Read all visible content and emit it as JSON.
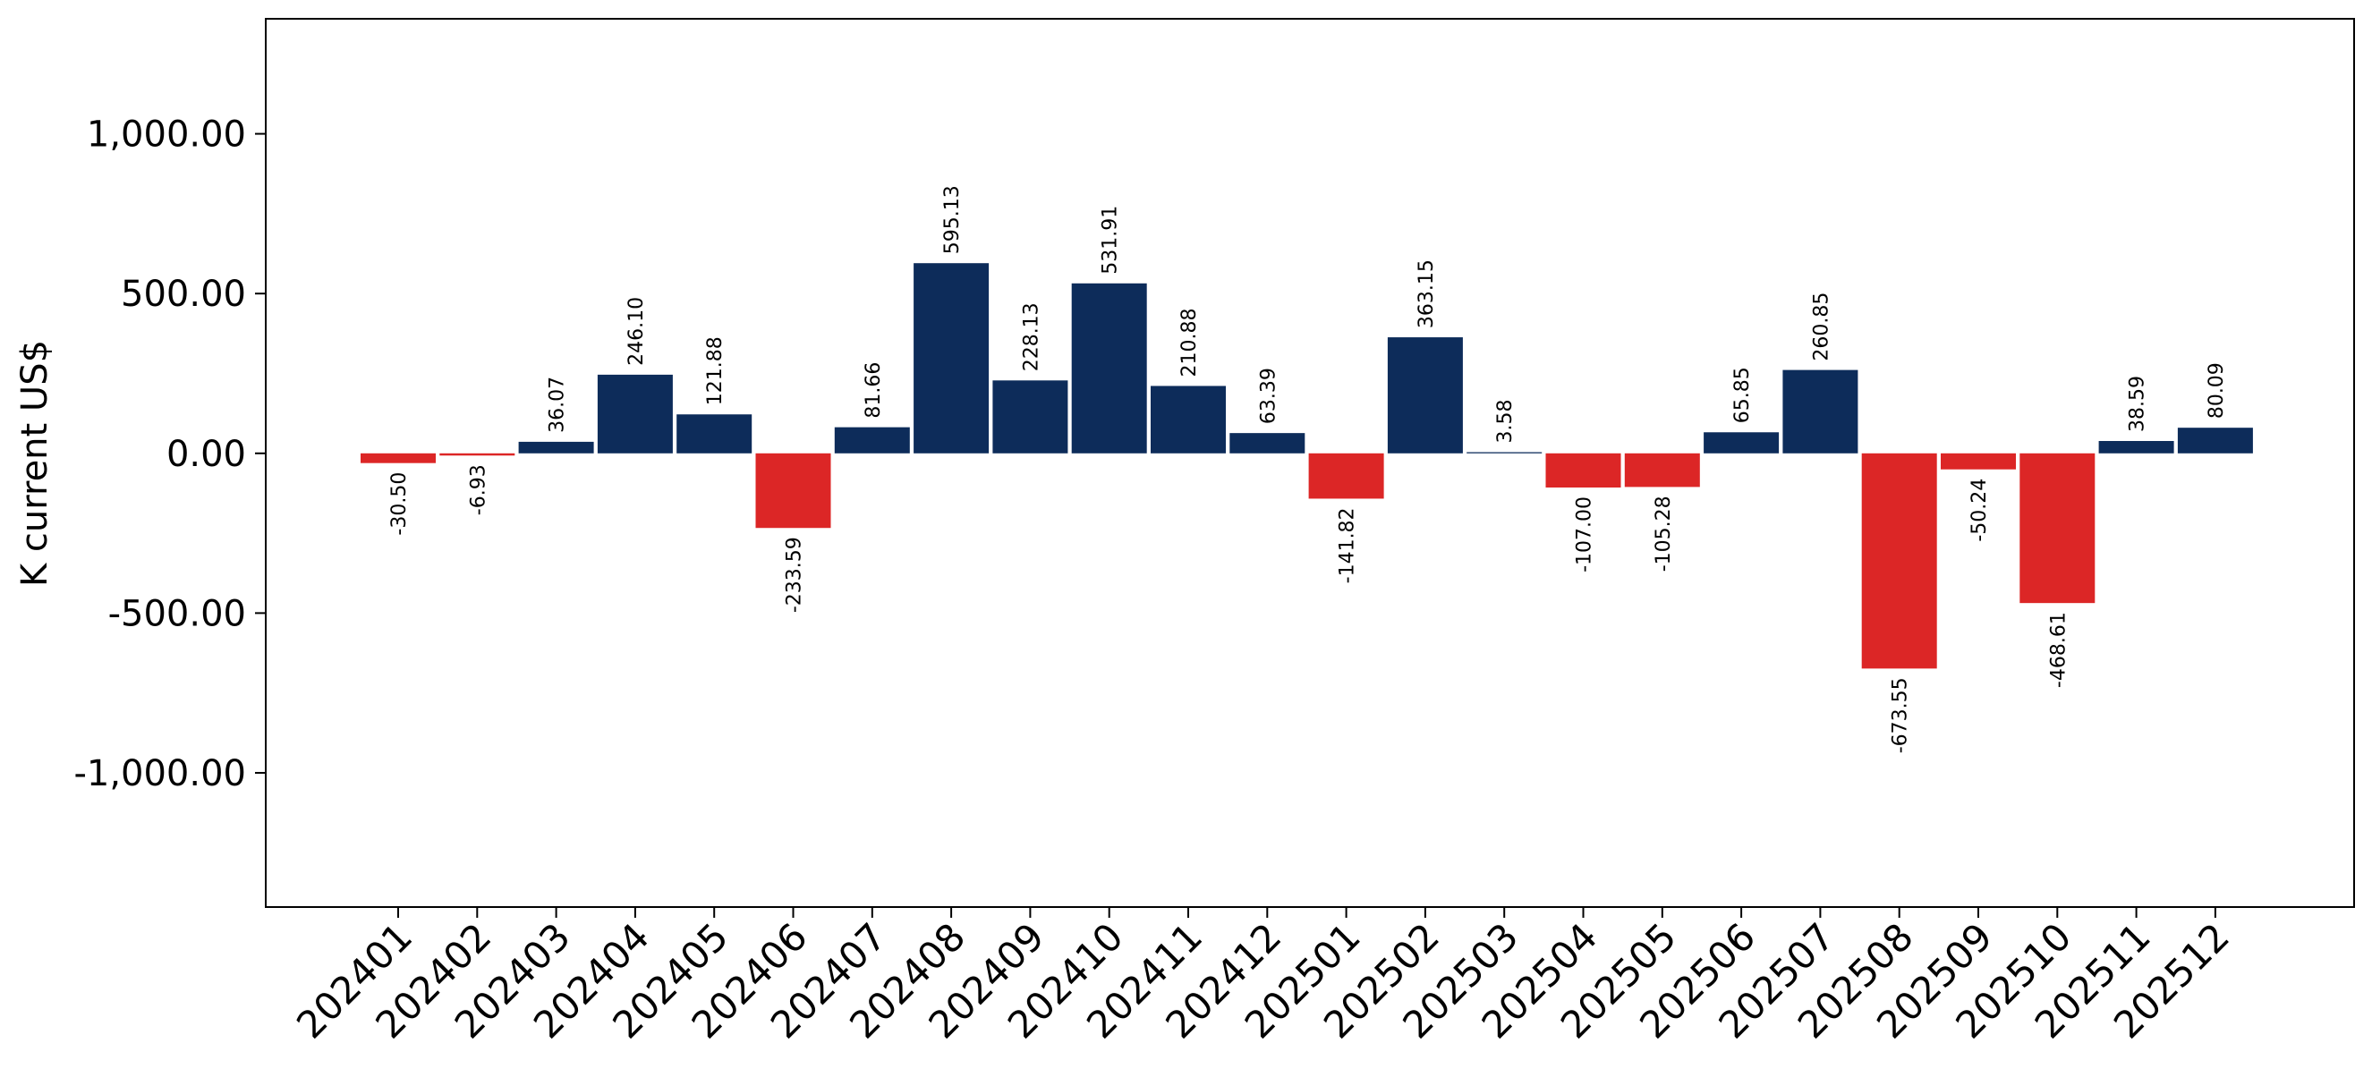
{
  "chart_data": {
    "type": "bar",
    "title": "",
    "xlabel": "",
    "ylabel": "K current US$",
    "ylim": [
      -1420,
      1360
    ],
    "yticks": [
      -1000,
      -500,
      0,
      500,
      1000
    ],
    "ytick_labels": [
      "-1,000.00",
      "-500.00",
      "0.00",
      "500.00",
      "1,000.00"
    ],
    "grid": false,
    "legend": "none",
    "categories": [
      "202401",
      "202402",
      "202403",
      "202404",
      "202405",
      "202406",
      "202407",
      "202408",
      "202409",
      "202410",
      "202411",
      "202412",
      "202501",
      "202502",
      "202503",
      "202504",
      "202505",
      "202506",
      "202507",
      "202508",
      "202509",
      "202510",
      "202511",
      "202512"
    ],
    "values": [
      -30.5,
      -6.93,
      36.07,
      246.1,
      121.88,
      -233.59,
      81.66,
      595.13,
      228.13,
      531.91,
      210.88,
      63.39,
      -141.82,
      363.15,
      3.58,
      -107.0,
      -105.28,
      65.85,
      260.85,
      -673.55,
      -50.24,
      -468.61,
      38.59,
      80.09
    ],
    "value_labels": [
      "-30.50",
      "-6.93",
      "36.07",
      "246.10",
      "121.88",
      "-233.59",
      "81.66",
      "595.13",
      "228.13",
      "531.91",
      "210.88",
      "63.39",
      "-141.82",
      "363.15",
      "3.58",
      "-107.00",
      "-105.28",
      "65.85",
      "260.85",
      "-673.55",
      "-50.24",
      "-468.61",
      "38.59",
      "80.09"
    ],
    "colors": {
      "positive": "#0d2c5a",
      "negative": "#dc2626"
    }
  }
}
